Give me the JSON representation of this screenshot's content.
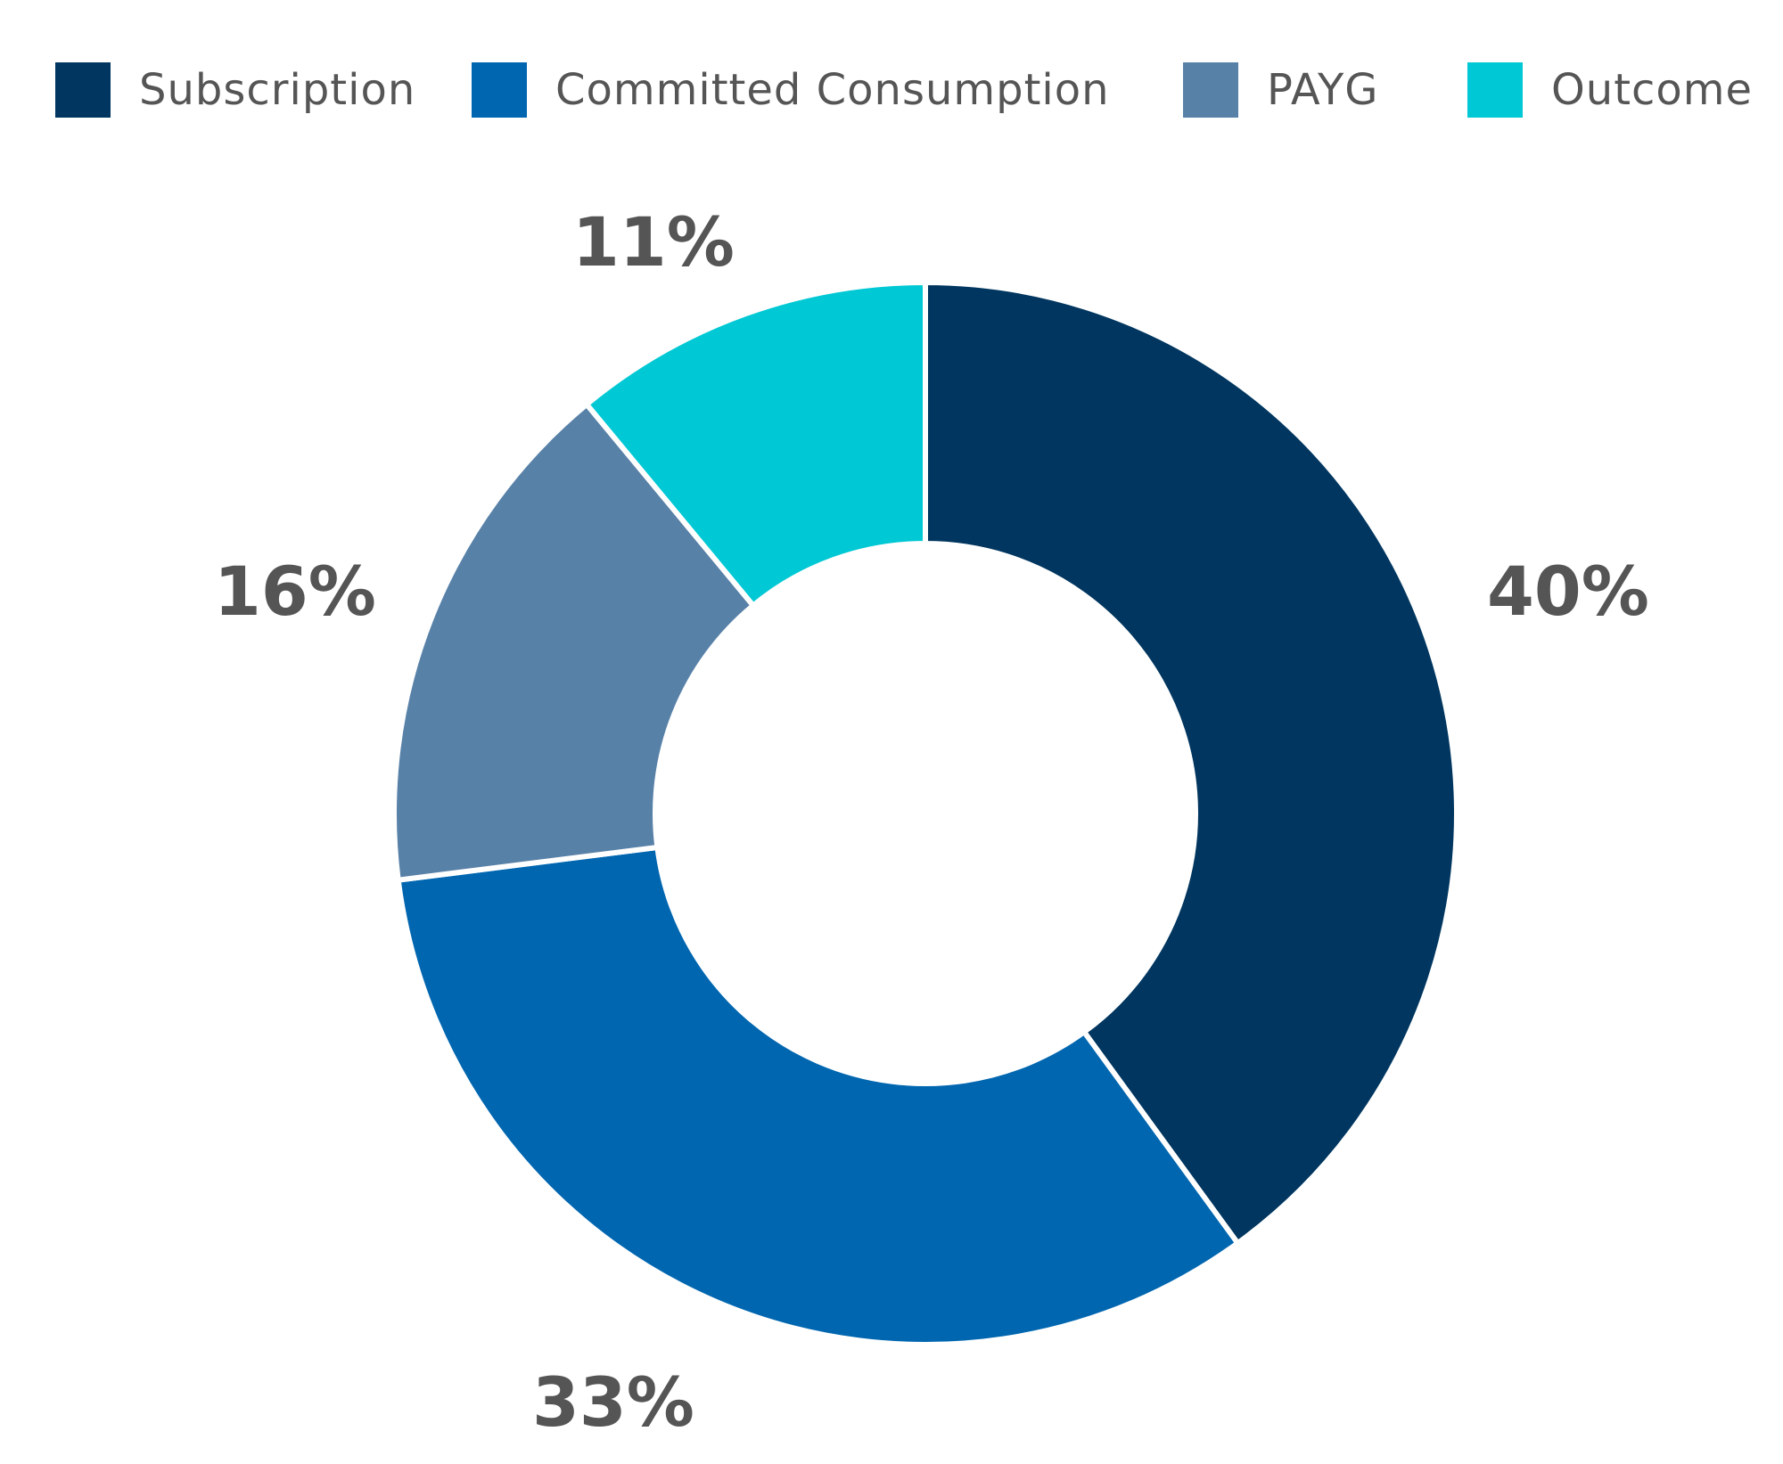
{
  "chart_data": {
    "type": "donut",
    "title": "",
    "legend_position": "top",
    "start_angle_deg": 0,
    "direction": "clockwise",
    "series": [
      {
        "name": "Subscription",
        "value": 40,
        "label": "40%",
        "color": "#00365f"
      },
      {
        "name": "Committed Consumption",
        "value": 33,
        "label": "33%",
        "color": "#0066b0"
      },
      {
        "name": "PAYG",
        "value": 16,
        "label": "16%",
        "color": "#5881a8"
      },
      {
        "name": "Outcome",
        "value": 11,
        "label": "11%",
        "color": "#00c8d4"
      }
    ]
  }
}
